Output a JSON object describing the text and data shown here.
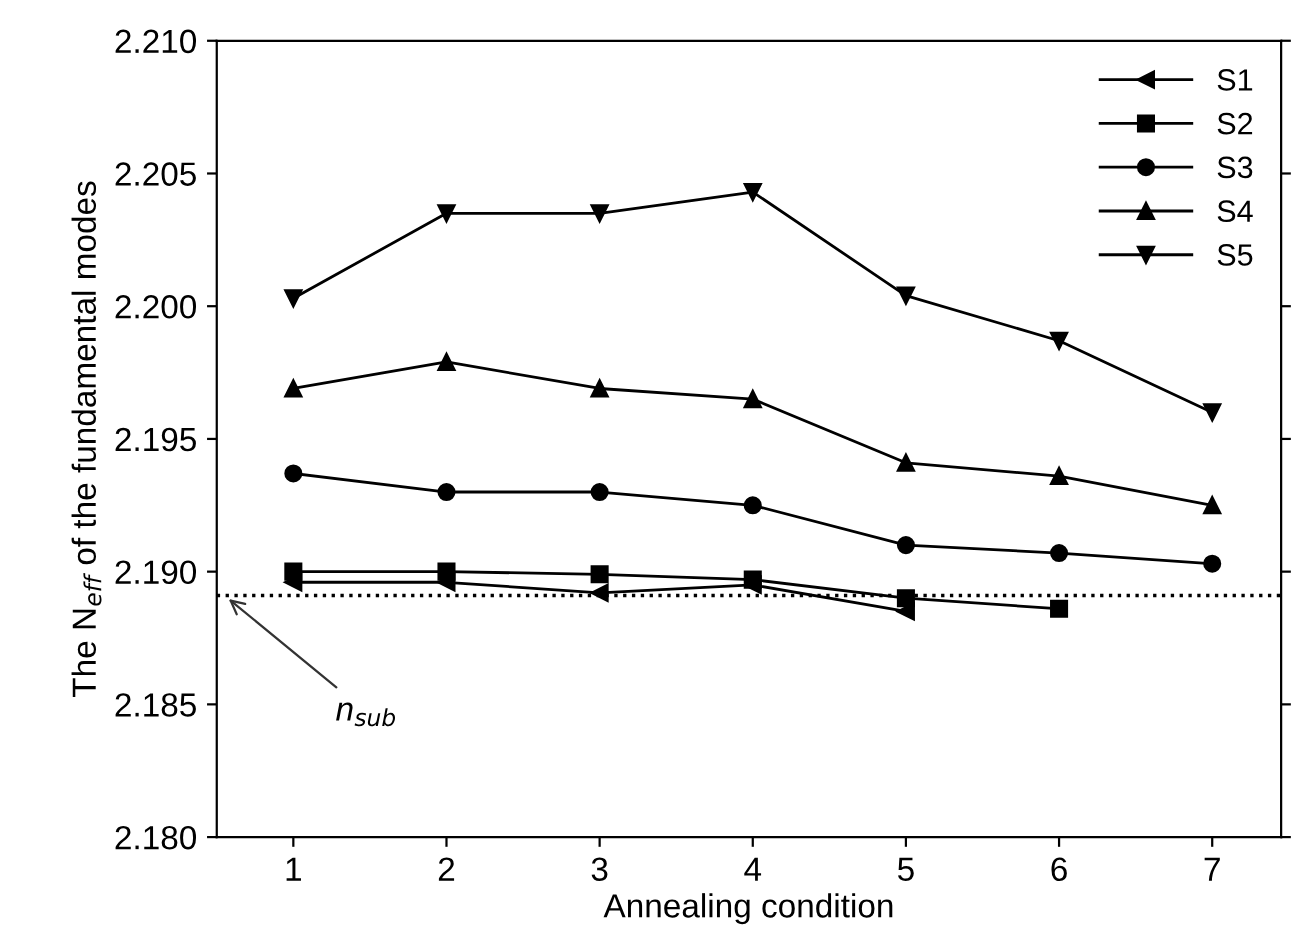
{
  "chart_data": {
    "type": "line",
    "xlabel": "Annealing condition",
    "ylabel": "The N$_{eff}$ of the fundamental modes",
    "x": [
      1,
      2,
      3,
      4,
      5,
      6,
      7
    ],
    "series": [
      {
        "name": "S1",
        "color": "#000000",
        "marker": "triangle-left",
        "values": [
          2.1896,
          2.1896,
          2.1892,
          2.1895,
          2.1885,
          null,
          null
        ]
      },
      {
        "name": "S2",
        "color": "#000000",
        "marker": "square",
        "values": [
          2.19,
          2.19,
          2.1899,
          2.1897,
          2.189,
          2.1886,
          null
        ]
      },
      {
        "name": "S3",
        "color": "#000000",
        "marker": "circle",
        "values": [
          2.1937,
          2.193,
          2.193,
          2.1925,
          2.191,
          2.1907,
          2.1903
        ]
      },
      {
        "name": "S4",
        "color": "#000000",
        "marker": "triangle",
        "values": [
          2.1969,
          2.1979,
          2.1969,
          2.1965,
          2.1941,
          2.1936,
          2.1925
        ]
      },
      {
        "name": "S5",
        "color": "#000000",
        "marker": "triangle-down",
        "values": [
          2.2003,
          2.2035,
          2.2035,
          2.2043,
          2.2004,
          2.1987,
          2.196
        ]
      }
    ],
    "xlim": [
      0.5,
      7.45
    ],
    "xticks": [
      1,
      2,
      3,
      4,
      5,
      6,
      7
    ],
    "ylim": [
      2.18,
      2.21
    ],
    "yticks": [
      {
        "value": 2.18,
        "label": "2.180"
      },
      {
        "value": 2.185,
        "label": "2.185"
      },
      {
        "value": 2.19,
        "label": "2.190"
      },
      {
        "value": 2.195,
        "label": "2.195"
      },
      {
        "value": 2.2,
        "label": "2.200"
      },
      {
        "value": 2.205,
        "label": "2.205"
      },
      {
        "value": 2.21,
        "label": "2.210"
      }
    ],
    "ref_lines": [
      {
        "axis": "y",
        "value": 2.1891,
        "line_style": "dotted",
        "color": "#000000"
      }
    ],
    "annotations": [
      {
        "text": "n$_{sub}$",
        "x": 0.55,
        "y": 2.1891
      }
    ],
    "legend": "top right",
    "grid": false,
    "line_style": "solid"
  }
}
